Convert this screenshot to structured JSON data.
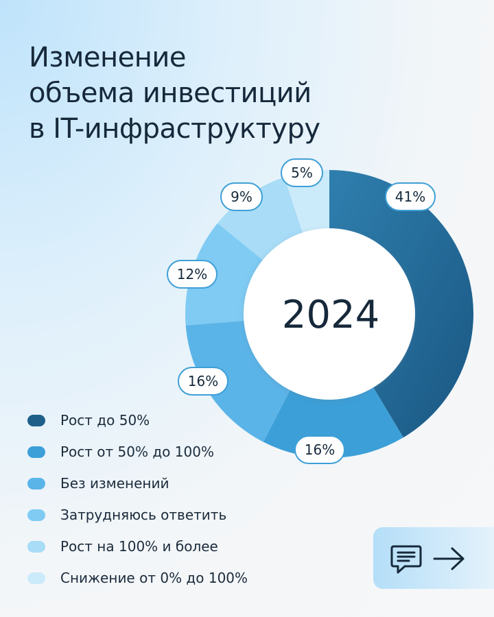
{
  "title_lines": [
    "Изменение",
    "объема инвестиций",
    "в IT-инфраструктуру"
  ],
  "chart_data": {
    "type": "pie",
    "variant": "donut",
    "center_label": "2024",
    "title": "Изменение объема инвестиций в IT-инфраструктуру",
    "slices": [
      {
        "name": "Рост до 50%",
        "value": 41,
        "label": "41%",
        "color": "#20648f"
      },
      {
        "name": "Рост от 50% до 100%",
        "value": 16,
        "label": "16%",
        "color": "#3c9fd8"
      },
      {
        "name": "Без изменений",
        "value": 16,
        "label": "16%",
        "color": "#5bb4e8"
      },
      {
        "name": "Затрудняюсь ответить",
        "value": 12,
        "label": "12%",
        "color": "#7fcbf3"
      },
      {
        "name": "Рост на 100% и более",
        "value": 9,
        "label": "9%",
        "color": "#a8dcf7"
      },
      {
        "name": "Снижение от 0% до 100%",
        "value": 5,
        "label": "5%",
        "color": "#ccebfa"
      }
    ],
    "legend_position": "bottom-left"
  },
  "icons": {
    "action_left": "chat-icon",
    "action_right": "arrow-right-icon"
  },
  "colors": {
    "text": "#16293b",
    "label_border": "#3e9fd6",
    "center_fill": "#ffffff"
  }
}
